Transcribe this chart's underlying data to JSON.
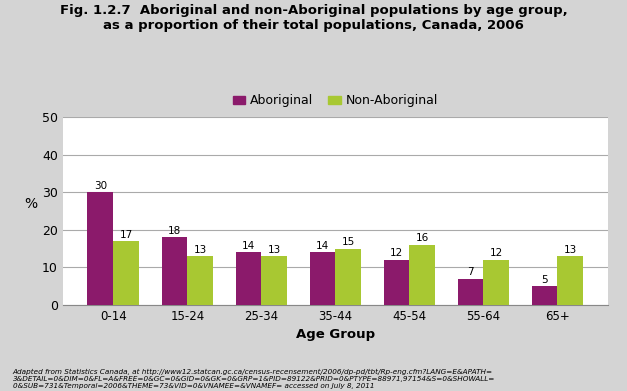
{
  "title_line1": "Fig. 1.2.7  Aboriginal and non-Aboriginal populations by age group,",
  "title_line2": "as a proportion of their total populations, Canada, 2006",
  "categories": [
    "0-14",
    "15-24",
    "25-34",
    "35-44",
    "45-54",
    "55-64",
    "65+"
  ],
  "aboriginal": [
    30,
    18,
    14,
    14,
    12,
    7,
    5
  ],
  "non_aboriginal": [
    17,
    13,
    13,
    15,
    16,
    12,
    13
  ],
  "aboriginal_color": "#8B1A6B",
  "non_aboriginal_color": "#A8C832",
  "ylabel": "%",
  "xlabel": "Age Group",
  "ylim": [
    0,
    50
  ],
  "yticks": [
    0,
    10,
    20,
    30,
    40,
    50
  ],
  "background_color": "#D4D4D4",
  "plot_background_color": "#FFFFFF",
  "legend_aboriginal": "Aboriginal",
  "legend_non_aboriginal": "Non-Aboriginal",
  "footnote_line1": "Adapted from Statistics Canada, at http://www12.statcan.gc.ca/census-recensement/2006/dp-pd/tbt/Rp-eng.cfm?LANG=E&APATH=",
  "footnote_line2": "3&DETAIL=0&DIM=0&FL=A&FREE=0&GC=0&GID=0&GK=0&GRP=1&PID=89122&PRID=0&PTYPE=88971,97154&S=0&SHOWALL=",
  "footnote_line3": "0&SUB=731&Temporal=2006&THEME=73&VID=0&VNAMEE=&VNAMEF= accessed on July 8, 2011"
}
